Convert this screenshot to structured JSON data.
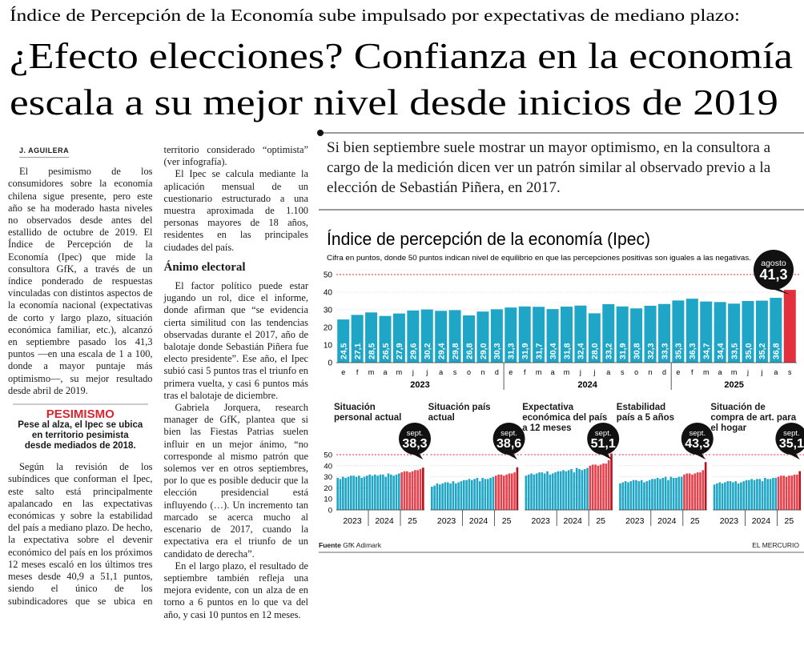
{
  "header": {
    "kicker": "Índice de Percepción de la Economía sube impulsado por expectativas de mediano plazo:",
    "headline": [
      "¿Efecto elecciones? Confianza en la economía",
      "escala a su mejor nivel desde inicios de 2019"
    ]
  },
  "deck": "Si bien septiembre suele mostrar un mayor optimismo, en la consultora a cargo de la medición dicen ver un patrón similar al observado previo a la elección de Sebastián Piñera, en 2017.",
  "article": {
    "byline": "J. AGUILERA",
    "sections": [
      {
        "paragraphs": [
          "El pesimismo de los consumidores sobre la economía chilena sigue presente, pero este año se ha moderado hasta niveles no observados desde antes del estallido de octubre de 2019. El Índice de Percepción de la Economía (Ipec) que mide la consultora GfK, a través de un índice ponderado de respuestas vinculadas con distintos aspectos de la economía nacional (expectativas de corto y largo plazo, situación económica familiar, etc.), alcanzó en septiembre pasado los 41,3 puntos —en una escala de 1 a 100, donde a mayor puntaje más optimismo—, su mejor resultado desde abril de 2019.",
          "Según la revisión de los subíndices que conforman el Ipec, este salto está principalmente apalancado en las expectativas económicas y sobre la estabilidad del país a mediano plazo. De hecho, la expectativa sobre el devenir económico del país en los próximos 12 meses escaló en los últimos tres meses desde 40,9 a 51,1 puntos, siendo el único de los subindicadores que se ubica en territorio considerado “optimista” (ver infografía).",
          "El Ipec se calcula mediante la aplicación mensual de un cuestionario estructurado a una muestra aproximada de 1.100 personas mayores de 18 años, residentes en las principales ciudades del país."
        ]
      },
      {
        "subhead": "Ánimo electoral",
        "paragraphs": [
          "El factor político puede estar jugando un rol, dice el informe, donde afirman que “se evidencia cierta similitud con las tendencias observadas durante el 2017, año de balotaje donde Sebastián Piñera fue electo presidente”. Ese año, el Ipec subió casi 5 puntos tras el triunfo en primera vuelta, y casi 6 puntos más tras el balotaje de diciembre.",
          "Gabriela Jorquera, research manager de GfK, plantea que si bien las Fiestas Patrias suelen influir en un mejor ánimo, “no corresponde al mismo patrón que solemos ver en otros septiembres, por lo que es posible deducir que la elección presidencial está influyendo (…). Un incremento tan marcado se acerca mucho al escenario de 2017, cuando la expectativa era el triunfo de un candidato de derecha”.",
          "En el largo plazo, el resultado de septiembre también refleja una mejora evidente, con un alza de en torno a 6 puntos en lo que va del año, y casi 10 puntos en 12 meses."
        ]
      }
    ]
  },
  "pullquote": {
    "title": "PESIMISMO",
    "text": "Pese al alza, el Ipec se ubica en territorio pesimista desde mediados de 2018."
  },
  "chart_data": [
    {
      "type": "bar",
      "title": "Índice de percepción de la economía (Ipec)",
      "subtitle": "Cifra en puntos, donde 50 puntos indican nivel de equilibrio en que las percepciones positivas son iguales a las negativas.",
      "categories": [
        "e",
        "f",
        "m",
        "a",
        "m",
        "j",
        "j",
        "a",
        "s",
        "o",
        "n",
        "d",
        "e",
        "f",
        "m",
        "a",
        "m",
        "j",
        "j",
        "a",
        "s",
        "o",
        "n",
        "d",
        "e",
        "f",
        "m",
        "a",
        "m",
        "j",
        "j",
        "a",
        "s"
      ],
      "values": [
        24.5,
        27.1,
        28.5,
        26.5,
        27.9,
        29.6,
        30.2,
        29.4,
        29.8,
        26.8,
        29.0,
        30.3,
        31.3,
        31.9,
        31.7,
        30.4,
        31.8,
        32.4,
        28.0,
        33.2,
        31.9,
        30.8,
        32.3,
        33.3,
        35.3,
        36.3,
        34.7,
        34.4,
        33.5,
        35.0,
        35.2,
        36.8,
        41.3
      ],
      "value_labels": [
        "24,5",
        "27,1",
        "28,5",
        "26,5",
        "27,9",
        "29,6",
        "30,2",
        "29,4",
        "29,8",
        "26,8",
        "29,0",
        "30,3",
        "31,3",
        "31,9",
        "31,7",
        "30,4",
        "31,8",
        "32,4",
        "28,0",
        "33,2",
        "31,9",
        "30,8",
        "32,3",
        "33,3",
        "35,3",
        "36,3",
        "34,7",
        "34,4",
        "33,5",
        "35,0",
        "35,2",
        "36,8",
        "41,3"
      ],
      "colors": [
        "#1fa6c6",
        "#1fa6c6",
        "#1fa6c6",
        "#1fa6c6",
        "#1fa6c6",
        "#1fa6c6",
        "#1fa6c6",
        "#1fa6c6",
        "#1fa6c6",
        "#1fa6c6",
        "#1fa6c6",
        "#1fa6c6",
        "#1fa6c6",
        "#1fa6c6",
        "#1fa6c6",
        "#1fa6c6",
        "#1fa6c6",
        "#1fa6c6",
        "#1fa6c6",
        "#1fa6c6",
        "#1fa6c6",
        "#1fa6c6",
        "#1fa6c6",
        "#1fa6c6",
        "#1fa6c6",
        "#1fa6c6",
        "#1fa6c6",
        "#1fa6c6",
        "#1fa6c6",
        "#1fa6c6",
        "#1fa6c6",
        "#1fa6c6",
        "#e2303c"
      ],
      "ylim": [
        0,
        50
      ],
      "yticks": [
        0,
        10,
        20,
        30,
        40,
        50
      ],
      "reference_line": 50,
      "year_labels": [
        "2023",
        "2024",
        "2025"
      ],
      "callout_label": "agosto"
    },
    {
      "type": "bar",
      "title": "Situación personal actual",
      "values": [
        29,
        28,
        30,
        29,
        30,
        31,
        31,
        30,
        31,
        29,
        30,
        31,
        32,
        31,
        32,
        31,
        32,
        32,
        30,
        33,
        32,
        31,
        32,
        33,
        34,
        35,
        35,
        34,
        35,
        36,
        36,
        37,
        38.3
      ],
      "colors": [
        "#1fa6c6",
        "#1fa6c6",
        "#1fa6c6",
        "#1fa6c6",
        "#1fa6c6",
        "#1fa6c6",
        "#1fa6c6",
        "#1fa6c6",
        "#1fa6c6",
        "#1fa6c6",
        "#1fa6c6",
        "#1fa6c6",
        "#1fa6c6",
        "#1fa6c6",
        "#1fa6c6",
        "#1fa6c6",
        "#1fa6c6",
        "#1fa6c6",
        "#1fa6c6",
        "#1fa6c6",
        "#1fa6c6",
        "#1fa6c6",
        "#1fa6c6",
        "#1fa6c6",
        "#e8404b",
        "#e8404b",
        "#e8404b",
        "#e8404b",
        "#e8404b",
        "#e8404b",
        "#e8404b",
        "#e8404b",
        "#b8101c"
      ],
      "ylim": [
        0,
        50
      ],
      "yticks": [
        0,
        10,
        20,
        30,
        40,
        50
      ],
      "reference_line": 50,
      "year_labels": [
        "2023",
        "2024",
        "25"
      ],
      "callout_label": "sept.",
      "callout_value": "38,3"
    },
    {
      "type": "bar",
      "title": "Situación país actual",
      "values": [
        21,
        22,
        24,
        23,
        24,
        25,
        25,
        24,
        26,
        24,
        25,
        26,
        27,
        27,
        28,
        27,
        28,
        29,
        26,
        29,
        28,
        28,
        29,
        30,
        31,
        32,
        32,
        31,
        32,
        33,
        33,
        34,
        38.6
      ],
      "colors": [
        "#1fa6c6",
        "#1fa6c6",
        "#1fa6c6",
        "#1fa6c6",
        "#1fa6c6",
        "#1fa6c6",
        "#1fa6c6",
        "#1fa6c6",
        "#1fa6c6",
        "#1fa6c6",
        "#1fa6c6",
        "#1fa6c6",
        "#1fa6c6",
        "#1fa6c6",
        "#1fa6c6",
        "#1fa6c6",
        "#1fa6c6",
        "#1fa6c6",
        "#1fa6c6",
        "#1fa6c6",
        "#1fa6c6",
        "#1fa6c6",
        "#1fa6c6",
        "#1fa6c6",
        "#e8404b",
        "#e8404b",
        "#e8404b",
        "#e8404b",
        "#e8404b",
        "#e8404b",
        "#e8404b",
        "#e8404b",
        "#b8101c"
      ],
      "ylim": [
        0,
        50
      ],
      "yticks": [
        0,
        10,
        20,
        30,
        40,
        50
      ],
      "reference_line": 50,
      "year_labels": [
        "2023",
        "2024",
        "25"
      ],
      "callout_label": "sept.",
      "callout_value": "38,6"
    },
    {
      "type": "bar",
      "title": "Expectativa económica del país a 12 meses",
      "values": [
        31,
        32,
        33,
        32,
        33,
        34,
        34,
        33,
        35,
        32,
        33,
        34,
        35,
        35,
        36,
        35,
        36,
        37,
        34,
        38,
        37,
        36,
        37,
        38,
        40,
        41,
        41,
        40,
        41,
        42,
        42,
        45,
        51.1
      ],
      "colors": [
        "#1fa6c6",
        "#1fa6c6",
        "#1fa6c6",
        "#1fa6c6",
        "#1fa6c6",
        "#1fa6c6",
        "#1fa6c6",
        "#1fa6c6",
        "#1fa6c6",
        "#1fa6c6",
        "#1fa6c6",
        "#1fa6c6",
        "#1fa6c6",
        "#1fa6c6",
        "#1fa6c6",
        "#1fa6c6",
        "#1fa6c6",
        "#1fa6c6",
        "#1fa6c6",
        "#1fa6c6",
        "#1fa6c6",
        "#1fa6c6",
        "#1fa6c6",
        "#1fa6c6",
        "#e8404b",
        "#e8404b",
        "#e8404b",
        "#e8404b",
        "#e8404b",
        "#e8404b",
        "#e8404b",
        "#e8404b",
        "#b8101c"
      ],
      "ylim": [
        0,
        50
      ],
      "yticks": [
        0,
        10,
        20,
        30,
        40,
        50
      ],
      "reference_line": 50,
      "year_labels": [
        "2023",
        "2024",
        "25"
      ],
      "callout_label": "sept.",
      "callout_value": "51,1"
    },
    {
      "type": "bar",
      "title": "Estabilidad país a 5 años",
      "values": [
        24,
        25,
        26,
        25,
        26,
        27,
        27,
        26,
        27,
        25,
        26,
        27,
        28,
        28,
        29,
        28,
        29,
        30,
        27,
        30,
        29,
        29,
        30,
        30,
        32,
        33,
        33,
        32,
        33,
        34,
        34,
        36,
        43.3
      ],
      "colors": [
        "#1fa6c6",
        "#1fa6c6",
        "#1fa6c6",
        "#1fa6c6",
        "#1fa6c6",
        "#1fa6c6",
        "#1fa6c6",
        "#1fa6c6",
        "#1fa6c6",
        "#1fa6c6",
        "#1fa6c6",
        "#1fa6c6",
        "#1fa6c6",
        "#1fa6c6",
        "#1fa6c6",
        "#1fa6c6",
        "#1fa6c6",
        "#1fa6c6",
        "#1fa6c6",
        "#1fa6c6",
        "#1fa6c6",
        "#1fa6c6",
        "#1fa6c6",
        "#1fa6c6",
        "#e8404b",
        "#e8404b",
        "#e8404b",
        "#e8404b",
        "#e8404b",
        "#e8404b",
        "#e8404b",
        "#e8404b",
        "#b8101c"
      ],
      "ylim": [
        0,
        50
      ],
      "yticks": [
        0,
        10,
        20,
        30,
        40,
        50
      ],
      "reference_line": 50,
      "year_labels": [
        "2023",
        "2024",
        "25"
      ],
      "callout_label": "sept.",
      "callout_value": "43,3"
    },
    {
      "type": "bar",
      "title": "Situación de compra de art. para el hogar",
      "values": [
        23,
        24,
        25,
        24,
        25,
        26,
        26,
        25,
        26,
        24,
        25,
        26,
        27,
        27,
        28,
        27,
        28,
        28,
        26,
        29,
        28,
        28,
        29,
        29,
        30,
        31,
        31,
        30,
        31,
        31,
        32,
        32,
        35.1
      ],
      "colors": [
        "#1fa6c6",
        "#1fa6c6",
        "#1fa6c6",
        "#1fa6c6",
        "#1fa6c6",
        "#1fa6c6",
        "#1fa6c6",
        "#1fa6c6",
        "#1fa6c6",
        "#1fa6c6",
        "#1fa6c6",
        "#1fa6c6",
        "#1fa6c6",
        "#1fa6c6",
        "#1fa6c6",
        "#1fa6c6",
        "#1fa6c6",
        "#1fa6c6",
        "#1fa6c6",
        "#1fa6c6",
        "#1fa6c6",
        "#1fa6c6",
        "#1fa6c6",
        "#1fa6c6",
        "#e8404b",
        "#e8404b",
        "#e8404b",
        "#e8404b",
        "#e8404b",
        "#e8404b",
        "#e8404b",
        "#e8404b",
        "#b8101c"
      ],
      "ylim": [
        0,
        50
      ],
      "yticks": [
        0,
        10,
        20,
        30,
        40,
        50
      ],
      "reference_line": 50,
      "year_labels": [
        "2023",
        "2024",
        "25"
      ],
      "callout_label": "sept.",
      "callout_value": "35,1"
    }
  ],
  "footer": {
    "source_label": "Fuente",
    "source": "GfK Adimark",
    "credit": "EL MERCURIO"
  }
}
